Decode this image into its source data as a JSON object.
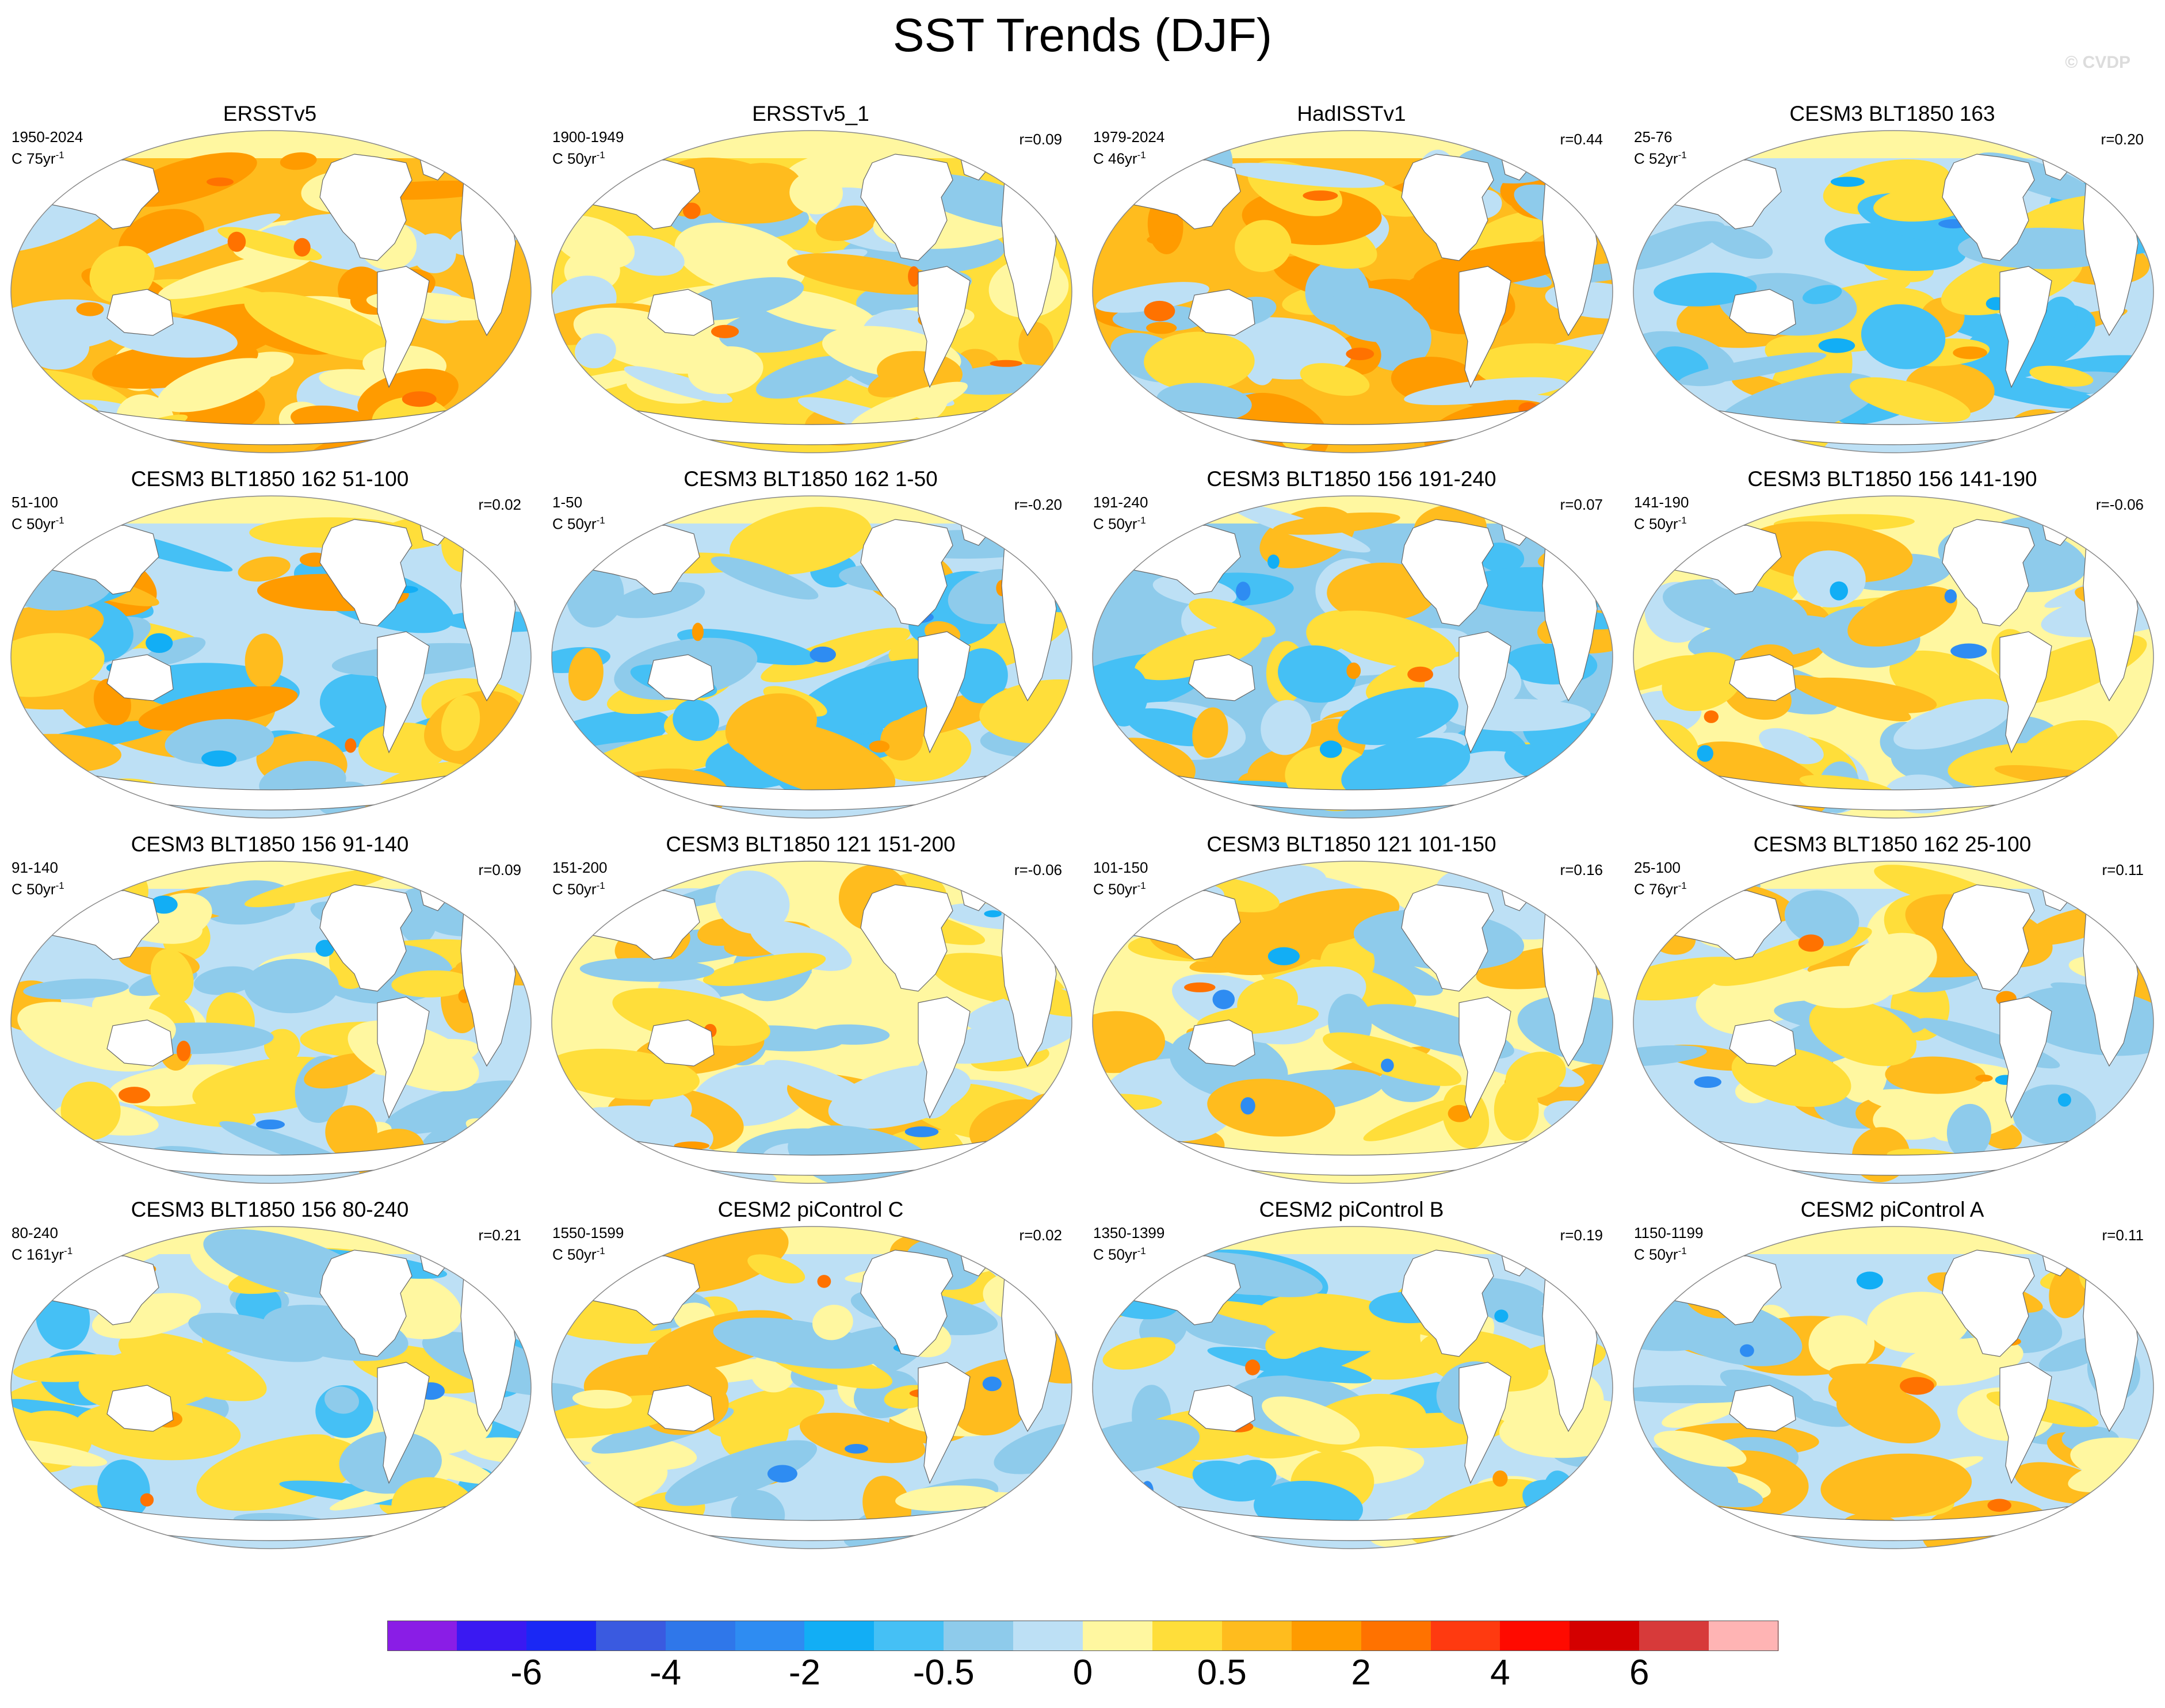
{
  "figure": {
    "title": "SST Trends (DJF)",
    "credit": "© CVDP"
  },
  "panels": [
    {
      "title": "ERSSTv5",
      "years": "1950-2024",
      "unit": "C 75yr",
      "r": "",
      "pattern": 0
    },
    {
      "title": "ERSSTv5_1",
      "years": "1900-1949",
      "unit": "C 50yr",
      "r": "r=0.09",
      "pattern": 1
    },
    {
      "title": "HadISSTv1",
      "years": "1979-2024",
      "unit": "C 46yr",
      "r": "r=0.44",
      "pattern": 2
    },
    {
      "title": "CESM3 BLT1850 163",
      "years": "25-76",
      "unit": "C 52yr",
      "r": "r=0.20",
      "pattern": 3
    },
    {
      "title": "CESM3 BLT1850 162 51-100",
      "years": "51-100",
      "unit": "C 50yr",
      "r": "r=0.02",
      "pattern": 4
    },
    {
      "title": "CESM3 BLT1850 162 1-50",
      "years": "1-50",
      "unit": "C 50yr",
      "r": "r=-0.20",
      "pattern": 5
    },
    {
      "title": "CESM3 BLT1850 156 191-240",
      "years": "191-240",
      "unit": "C 50yr",
      "r": "r=0.07",
      "pattern": 6
    },
    {
      "title": "CESM3 BLT1850 156 141-190",
      "years": "141-190",
      "unit": "C 50yr",
      "r": "r=-0.06",
      "pattern": 7
    },
    {
      "title": "CESM3 BLT1850 156 91-140",
      "years": "91-140",
      "unit": "C 50yr",
      "r": "r=0.09",
      "pattern": 8
    },
    {
      "title": "CESM3 BLT1850 121 151-200",
      "years": "151-200",
      "unit": "C 50yr",
      "r": "r=-0.06",
      "pattern": 9
    },
    {
      "title": "CESM3 BLT1850 121 101-150",
      "years": "101-150",
      "unit": "C 50yr",
      "r": "r=0.16",
      "pattern": 10
    },
    {
      "title": "CESM3 BLT1850 162 25-100",
      "years": "25-100",
      "unit": "C 76yr",
      "r": "r=0.11",
      "pattern": 11
    },
    {
      "title": "CESM3 BLT1850 156 80-240",
      "years": "80-240",
      "unit": "C 161yr",
      "r": "r=0.21",
      "pattern": 12
    },
    {
      "title": "CESM2 piControl C",
      "years": "1550-1599",
      "unit": "C 50yr",
      "r": "r=0.02",
      "pattern": 13
    },
    {
      "title": "CESM2 piControl B",
      "years": "1350-1399",
      "unit": "C 50yr",
      "r": "r=0.19",
      "pattern": 14
    },
    {
      "title": "CESM2 piControl A",
      "years": "1150-1199",
      "unit": "C 50yr",
      "r": "r=0.11",
      "pattern": 15
    }
  ],
  "colorbar": {
    "colors": [
      "#8a1de6",
      "#3a19f2",
      "#1a28f5",
      "#3a5ae0",
      "#2f77ea",
      "#2e8cf2",
      "#12aef5",
      "#45c0f5",
      "#8ecbeb",
      "#bde0f5",
      "#fff7a0",
      "#ffde3a",
      "#ffbc1e",
      "#ff9b00",
      "#ff7200",
      "#ff3a10",
      "#ff0a00",
      "#d40000",
      "#d73a3a",
      "#ffb4b4"
    ],
    "labels": [
      {
        "text": "-6",
        "boundary": 2
      },
      {
        "text": "-4",
        "boundary": 4
      },
      {
        "text": "-2",
        "boundary": 6
      },
      {
        "text": "-0.5",
        "boundary": 8
      },
      {
        "text": "0",
        "boundary": 10
      },
      {
        "text": "0.5",
        "boundary": 12
      },
      {
        "text": "2",
        "boundary": 14
      },
      {
        "text": "4",
        "boundary": 16
      },
      {
        "text": "6",
        "boundary": 18
      }
    ]
  }
}
